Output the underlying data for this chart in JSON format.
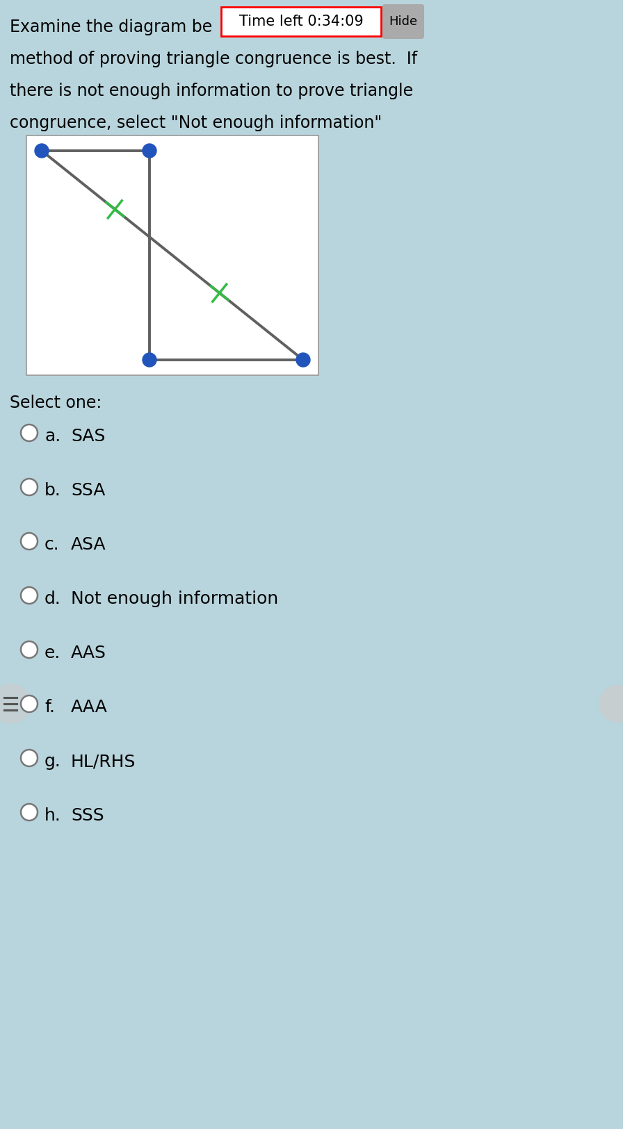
{
  "bg_color": "#b8d4dc",
  "diagram_bg": "#ffffff",
  "point_color": "#2255bb",
  "line_color": "#606060",
  "tick_color": "#33bb44",
  "timer_text": "Time left 0:34:09",
  "hide_text": "Hide",
  "select_label": "Select one:",
  "options": [
    {
      "label": "a.",
      "text": "SAS"
    },
    {
      "label": "b.",
      "text": "SSA"
    },
    {
      "label": "c.",
      "text": "ASA"
    },
    {
      "label": "d.",
      "text": "Not enough information"
    },
    {
      "label": "e.",
      "text": "AAS"
    },
    {
      "label": "f.",
      "text": "AAA"
    },
    {
      "label": "g.",
      "text": "HL/RHS"
    },
    {
      "label": "h.",
      "text": "SSS"
    }
  ],
  "header_line1_pre": "Examine the diagram be",
  "header_line2": "method of proving triangle congruence is best.  If",
  "header_line3": "there is not enough information to prove triangle",
  "header_line4": "congruence, select \"Not enough information\"",
  "font_size_header": 17,
  "font_size_options": 18,
  "font_size_select": 17,
  "font_size_timer": 15
}
